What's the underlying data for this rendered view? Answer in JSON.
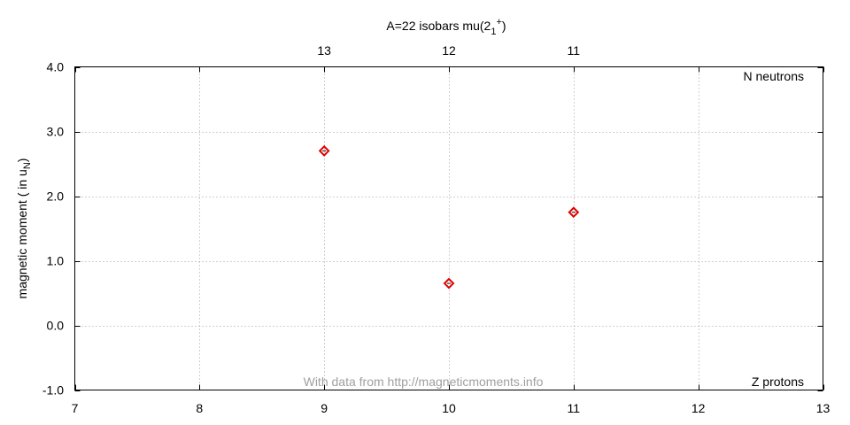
{
  "chart_data": {
    "type": "scatter",
    "title_main": "A=22 isobars mu(2",
    "title_sub": "1",
    "title_sup": "+",
    "title_close": ")",
    "xlabel": "Z protons",
    "ylabel_main": "magnetic moment ( in u",
    "ylabel_sub": "N",
    "ylabel_close": ")",
    "x2label": "N neutrons",
    "watermark": "With data from http://magneticmoments.info",
    "xlim": [
      7,
      13
    ],
    "ylim": [
      -1.0,
      4.0
    ],
    "x_ticks": [
      "7",
      "8",
      "9",
      "10",
      "11",
      "12",
      "13"
    ],
    "y_ticks": [
      "-1.0",
      "0.0",
      "1.0",
      "2.0",
      "3.0",
      "4.0"
    ],
    "x2_ticks": [
      {
        "z": 9,
        "label": "13"
      },
      {
        "z": 10,
        "label": "12"
      },
      {
        "z": 11,
        "label": "11"
      }
    ],
    "grid": true,
    "marker_color": "#e00000",
    "points": [
      {
        "x": 9,
        "y": 2.7
      },
      {
        "x": 10,
        "y": 0.65
      },
      {
        "x": 11,
        "y": 1.75
      }
    ]
  }
}
